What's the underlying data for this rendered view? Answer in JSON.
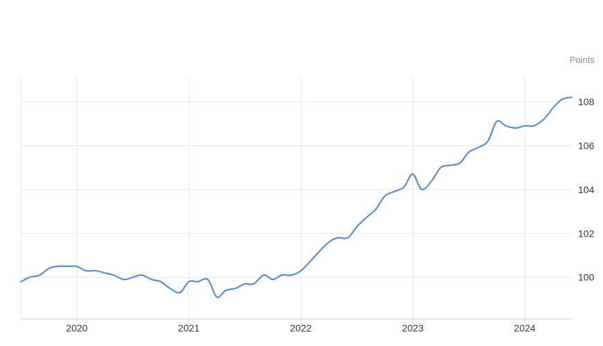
{
  "chart_data": {
    "type": "line",
    "unit_label": "Points",
    "x_ticks": [
      "2020",
      "2021",
      "2022",
      "2023",
      "2024"
    ],
    "y_ticks": [
      100,
      102,
      104,
      106,
      108
    ],
    "xlim": [
      2019.5,
      2024.42
    ],
    "ylim": [
      98.1,
      109.1
    ],
    "grid": true,
    "colors": {
      "line": "#5b8ec9"
    },
    "series": [
      {
        "x": [
          2019.5,
          2019.58,
          2019.67,
          2019.75,
          2019.83,
          2019.92,
          2020.0,
          2020.08,
          2020.17,
          2020.25,
          2020.33,
          2020.42,
          2020.5,
          2020.58,
          2020.67,
          2020.75,
          2020.83,
          2020.92,
          2021.0,
          2021.08,
          2021.17,
          2021.25,
          2021.33,
          2021.42,
          2021.5,
          2021.58,
          2021.67,
          2021.75,
          2021.83,
          2021.92,
          2022.0,
          2022.08,
          2022.17,
          2022.25,
          2022.33,
          2022.42,
          2022.5,
          2022.58,
          2022.67,
          2022.75,
          2022.83,
          2022.92,
          2023.0,
          2023.08,
          2023.17,
          2023.25,
          2023.33,
          2023.42,
          2023.5,
          2023.58,
          2023.67,
          2023.75,
          2023.83,
          2023.92,
          2024.0,
          2024.08,
          2024.17,
          2024.25,
          2024.33,
          2024.42
        ],
        "values": [
          99.8,
          100.0,
          100.1,
          100.4,
          100.5,
          100.5,
          100.5,
          100.3,
          100.3,
          100.2,
          100.1,
          99.9,
          100.0,
          100.1,
          99.9,
          99.8,
          99.5,
          99.3,
          99.8,
          99.8,
          99.9,
          99.1,
          99.4,
          99.5,
          99.7,
          99.7,
          100.1,
          99.9,
          100.1,
          100.1,
          100.3,
          100.7,
          101.2,
          101.6,
          101.8,
          101.8,
          102.3,
          102.7,
          103.1,
          103.7,
          103.9,
          104.1,
          104.7,
          104.0,
          104.4,
          105.0,
          105.1,
          105.2,
          105.7,
          105.9,
          106.2,
          107.1,
          106.9,
          106.8,
          106.9,
          106.9,
          107.2,
          107.7,
          108.1,
          108.2
        ]
      }
    ]
  }
}
